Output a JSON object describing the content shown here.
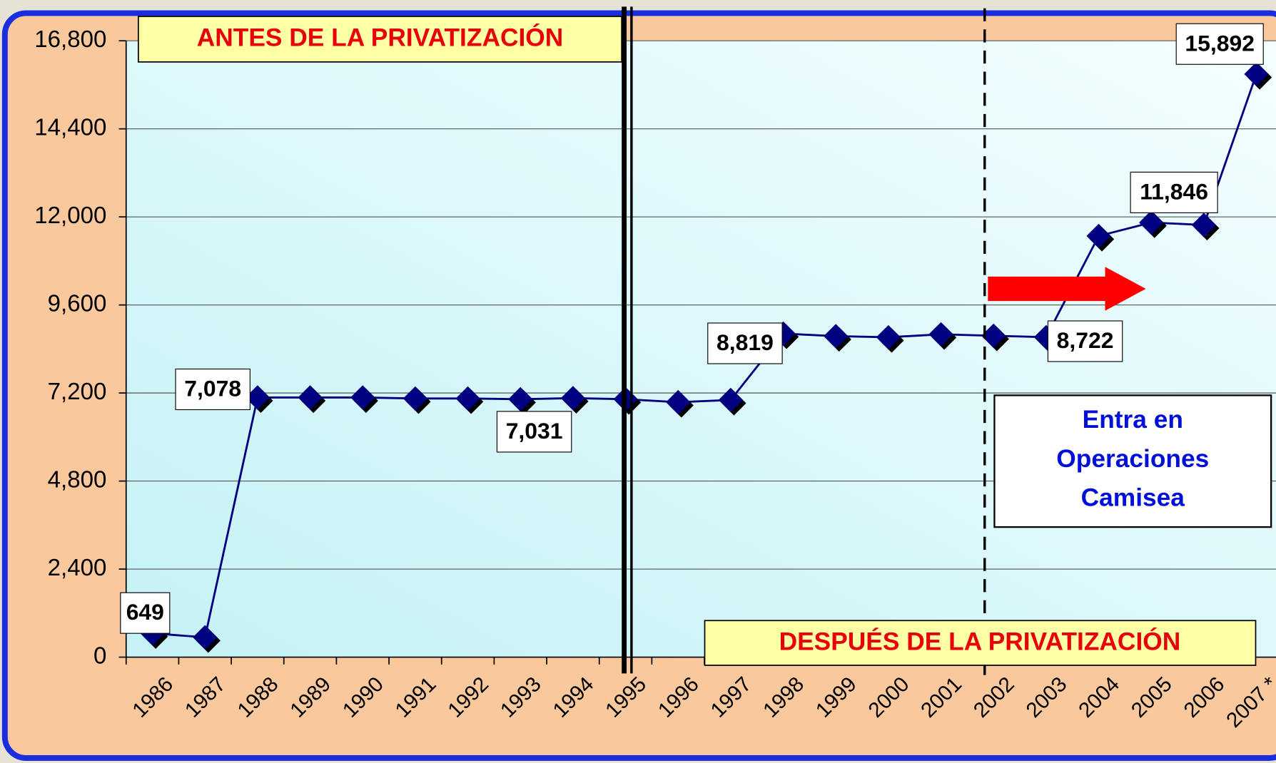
{
  "chart_data": {
    "type": "line",
    "categories": [
      "1986",
      "1987",
      "1988",
      "1989",
      "1990",
      "1991",
      "1992",
      "1993",
      "1994",
      "1995",
      "1996",
      "1997",
      "1998",
      "1999",
      "2000",
      "2001",
      "2002",
      "2003",
      "2004",
      "2005",
      "2006",
      "2007 *"
    ],
    "series": [
      {
        "color": "#000080",
        "values": [
          649,
          540,
          7078,
          7078,
          7078,
          7050,
          7050,
          7031,
          7060,
          7031,
          6950,
          7010,
          8819,
          8750,
          8720,
          8800,
          8760,
          8722,
          11480,
          11846,
          11780,
          15892
        ],
        "value_labels": [
          "649",
          null,
          "7,078",
          null,
          null,
          null,
          null,
          "7,031",
          null,
          null,
          null,
          null,
          "8,819",
          null,
          null,
          null,
          null,
          "8,722",
          null,
          "11,846",
          null,
          "15,892"
        ]
      }
    ],
    "ylim": [
      0,
      16800
    ],
    "yticks": [
      0,
      {
        "value": 2400,
        "label": "2,400"
      },
      {
        "value": 4800,
        "label": "4,800"
      },
      {
        "value": 7200,
        "label": "7,200"
      },
      {
        "value": 9600,
        "label": "9,600"
      },
      {
        "value": 12000,
        "label": "12,000"
      },
      {
        "value": 14400,
        "label": "14,400"
      },
      {
        "value": 16800,
        "label": "16,800"
      }
    ],
    "grid": true,
    "annotations": {
      "before": "ANTES DE LA PRIVATIZACIÓN",
      "after": "DESPUÉS DE LA PRIVATIZACIÓN",
      "camisea": [
        "Entra en",
        "Operaciones",
        "Camisea"
      ]
    }
  }
}
